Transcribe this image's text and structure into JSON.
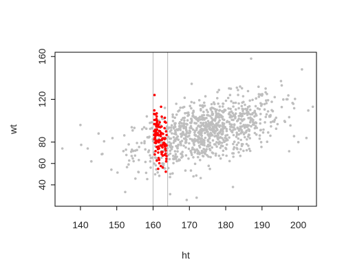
{
  "chart_data": {
    "type": "scatter",
    "xlabel": "ht",
    "ylabel": "wt",
    "xlim": [
      133,
      205
    ],
    "ylim": [
      20,
      164
    ],
    "x_ticks": [
      140,
      150,
      160,
      170,
      180,
      190,
      200
    ],
    "y_ticks": [
      40,
      60,
      80,
      120,
      160
    ],
    "grid": false,
    "legend": "none",
    "reference_lines_x": [
      160,
      164
    ],
    "reference_line_color": "#c0c0c0",
    "series": [
      {
        "color": "#bebebe",
        "n": 900,
        "x_mean": 175,
        "x_sd": 10,
        "y_mean": 90,
        "y_sd": 17,
        "correlation": 0.5,
        "points": [
          [
            135,
            74
          ],
          [
            140,
            96
          ],
          [
            142,
            74
          ],
          [
            143,
            62
          ],
          [
            145,
            88
          ],
          [
            201,
            148
          ],
          [
            200,
            80
          ],
          [
            204,
            113
          ],
          [
            197,
            120
          ],
          [
            172,
            28
          ],
          [
            187,
            158
          ],
          [
            182,
            38
          ]
        ]
      },
      {
        "color": "#ff0000",
        "n": 110,
        "x_range": [
          160,
          164
        ],
        "y_mean": 85,
        "y_sd": 13,
        "points": [
          [
            160.4,
            124
          ],
          [
            162.2,
            113
          ],
          [
            161.0,
            104
          ],
          [
            163.6,
            62
          ],
          [
            161.4,
            55
          ]
        ]
      }
    ]
  }
}
